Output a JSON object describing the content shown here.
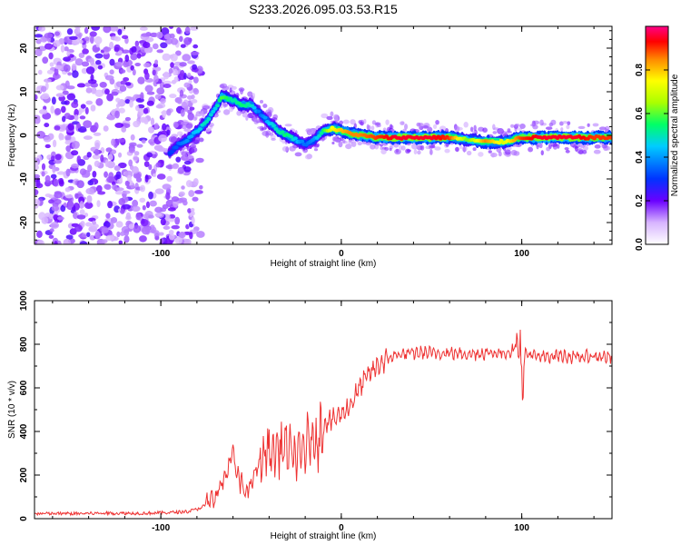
{
  "chart_data": [
    {
      "type": "heatmap",
      "title": "S233.2026.095.03.53.R15",
      "xlabel": "Height of straight line (km)",
      "ylabel": "Frequency (Hz)",
      "xlim": [
        -170,
        150
      ],
      "ylim": [
        -25,
        25
      ],
      "xticks": [
        -100,
        0,
        100
      ],
      "yticks": [
        -20,
        -10,
        0,
        10,
        20
      ],
      "colorbar": {
        "label": "Normalized spectral amplitude",
        "range": [
          0,
          1
        ],
        "ticks": [
          0.0,
          0.2,
          0.4,
          0.6,
          0.8
        ]
      },
      "ridge": {
        "height_km": [
          -95,
          -90,
          -85,
          -80,
          -75,
          -70,
          -66,
          -60,
          -55,
          -50,
          -45,
          -40,
          -35,
          -30,
          -25,
          -20,
          -15,
          -10,
          -5,
          0,
          5,
          10,
          20,
          30,
          40,
          50,
          60,
          70,
          80,
          90,
          100,
          110,
          120,
          130,
          140,
          150
        ],
        "frequency_hz": [
          -4,
          -2,
          -1,
          1,
          3,
          6,
          9,
          8,
          7,
          7,
          5,
          3,
          1,
          0,
          -1,
          -2,
          -1,
          1,
          1.5,
          1,
          0.5,
          0,
          -0.5,
          -0.5,
          -0.5,
          -0.5,
          -0.5,
          -1,
          -1.5,
          -1.5,
          -0.5,
          -0.5,
          -0.5,
          -0.5,
          -0.5,
          -0.5
        ],
        "amplitude": [
          0.3,
          0.35,
          0.4,
          0.45,
          0.5,
          0.45,
          0.6,
          0.5,
          0.55,
          0.5,
          0.35,
          0.45,
          0.5,
          0.55,
          0.45,
          0.35,
          0.4,
          0.55,
          0.75,
          0.8,
          0.85,
          0.85,
          0.9,
          0.95,
          0.95,
          0.95,
          0.9,
          0.6,
          0.85,
          0.7,
          0.9,
          0.95,
          0.95,
          0.95,
          0.9,
          0.9
        ]
      },
      "noise_region_km": [
        -170,
        -80
      ]
    },
    {
      "type": "line",
      "xlabel": "Height of straight line (km)",
      "ylabel": "SNR (10 * v/v)",
      "xlim": [
        -170,
        150
      ],
      "ylim": [
        0,
        1000
      ],
      "xticks": [
        -100,
        0,
        100
      ],
      "yticks": [
        0,
        200,
        400,
        600,
        800,
        1000
      ],
      "color": "#ee3333",
      "series": [
        {
          "name": "SNR",
          "x": [
            -170,
            -150,
            -130,
            -110,
            -95,
            -85,
            -80,
            -75,
            -70,
            -65,
            -62,
            -60,
            -58,
            -55,
            -52,
            -50,
            -48,
            -45,
            -42,
            -40,
            -38,
            -35,
            -32,
            -30,
            -28,
            -25,
            -22,
            -20,
            -18,
            -15,
            -12,
            -10,
            -8,
            -5,
            -2,
            0,
            5,
            10,
            15,
            20,
            25,
            30,
            40,
            50,
            60,
            70,
            80,
            90,
            95,
            97,
            99,
            100,
            102,
            105,
            110,
            120,
            130,
            140,
            150
          ],
          "y": [
            20,
            20,
            22,
            22,
            25,
            30,
            40,
            60,
            100,
            180,
            250,
            300,
            200,
            150,
            120,
            160,
            200,
            260,
            300,
            320,
            300,
            320,
            330,
            320,
            300,
            280,
            300,
            330,
            350,
            360,
            380,
            420,
            450,
            450,
            470,
            480,
            520,
            600,
            660,
            700,
            730,
            750,
            760,
            760,
            760,
            755,
            760,
            760,
            770,
            800,
            850,
            600,
            760,
            750,
            740,
            750,
            740,
            745,
            740
          ]
        }
      ]
    }
  ]
}
